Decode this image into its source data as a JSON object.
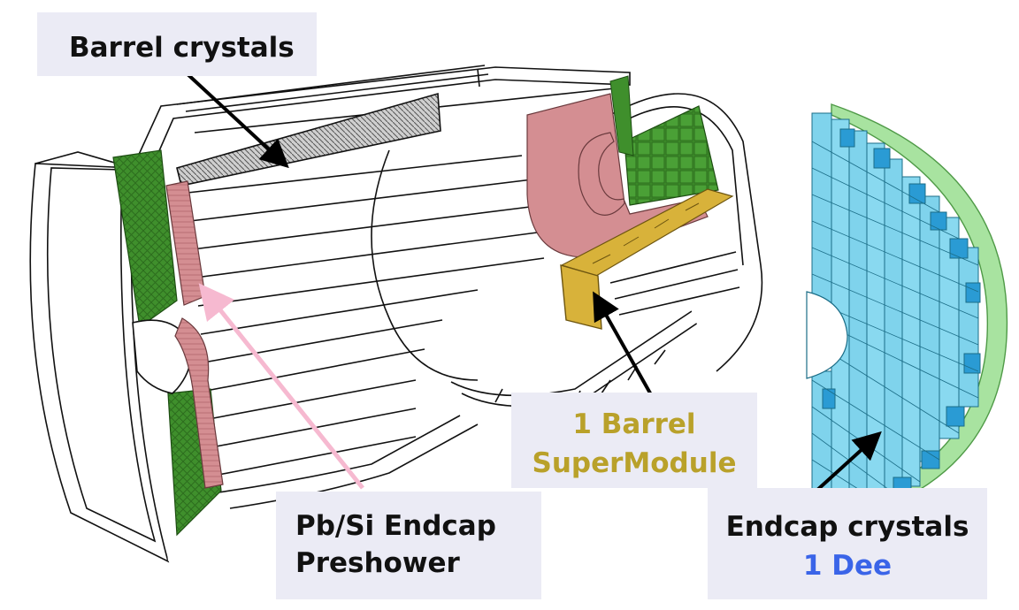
{
  "labels": {
    "barrel_crystals": "Barrel crystals",
    "preshower_line1": "Pb/Si Endcap",
    "preshower_line2": "Preshower",
    "supermodule_line1": "1 Barrel",
    "supermodule_line2": "SuperModule",
    "endcap_line1": "Endcap crystals",
    "endcap_line2": "1 Dee"
  },
  "colors": {
    "endcap_green": "#3f8f2c",
    "preshower_pink": "#d48e92",
    "supermodule_yellow": "#d8b23a",
    "supermodule_label": "#b9a12a",
    "dee_blue": "#3a64e8",
    "dee_crystal": "#7fd3ec",
    "dee_rim": "#a8e3a0",
    "label_box": "#ebebf5"
  }
}
